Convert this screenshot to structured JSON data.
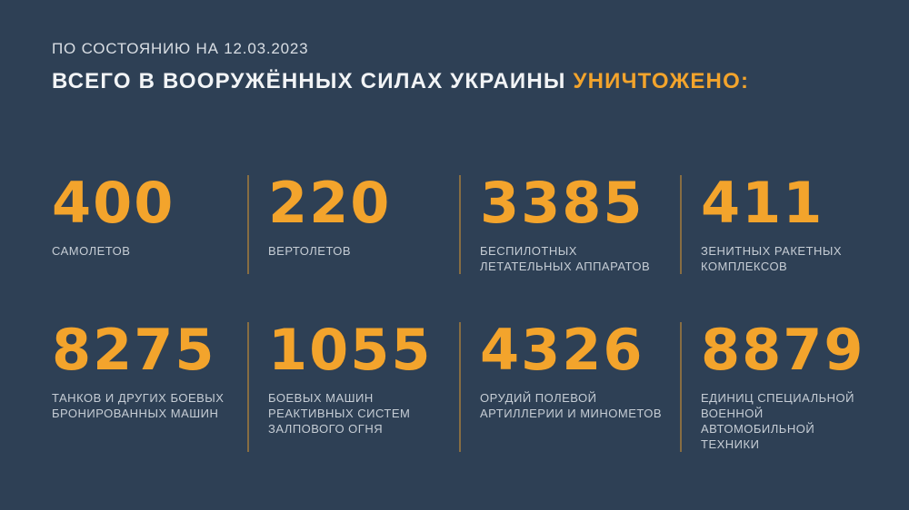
{
  "page": {
    "background_color": "#2e4055",
    "accent_color": "#f3a42c",
    "label_color": "#c6cdd5"
  },
  "header": {
    "date_line": "ПО СОСТОЯНИЮ НА 12.03.2023",
    "title_main": "ВСЕГО В ВООРУЖЁННЫХ СИЛАХ УКРАИНЫ",
    "title_highlight": "УНИЧТОЖЕНО:"
  },
  "stats": [
    {
      "value": "400",
      "label": "САМОЛЕТОВ"
    },
    {
      "value": "220",
      "label": "ВЕРТОЛЕТОВ"
    },
    {
      "value": "3385",
      "label": "БЕСПИЛОТНЫХ\nЛЕТАТЕЛЬНЫХ АППАРАТОВ"
    },
    {
      "value": "411",
      "label": "ЗЕНИТНЫХ РАКЕТНЫХ\nКОМПЛЕКСОВ"
    },
    {
      "value": "8275",
      "label": "ТАНКОВ И ДРУГИХ БОЕВЫХ\nБРОНИРОВАННЫХ МАШИН"
    },
    {
      "value": "1055",
      "label": "БОЕВЫХ МАШИН\nРЕАКТИВНЫХ СИСТЕМ\nЗАЛПОВОГО ОГНЯ"
    },
    {
      "value": "4326",
      "label": "ОРУДИЙ ПОЛЕВОЙ\nАРТИЛЛЕРИИ И МИНОМЕТОВ"
    },
    {
      "value": "8879",
      "label": "ЕДИНИЦ СПЕЦИАЛЬНОЙ\nВОЕННОЙ АВТОМОБИЛЬНОЙ\nТЕХНИКИ"
    }
  ],
  "chart_data": {
    "type": "table",
    "title": "ВСЕГО В ВООРУЖЁННЫХ СИЛАХ УКРАИНЫ УНИЧТОЖЕНО:",
    "subtitle": "ПО СОСТОЯНИЮ НА 12.03.2023",
    "categories": [
      "САМОЛЕТОВ",
      "ВЕРТОЛЕТОВ",
      "БЕСПИЛОТНЫХ ЛЕТАТЕЛЬНЫХ АППАРАТОВ",
      "ЗЕНИТНЫХ РАКЕТНЫХ КОМПЛЕКСОВ",
      "ТАНКОВ И ДРУГИХ БОЕВЫХ БРОНИРОВАННЫХ МАШИН",
      "БОЕВЫХ МАШИН РЕАКТИВНЫХ СИСТЕМ ЗАЛПОВОГО ОГНЯ",
      "ОРУДИЙ ПОЛЕВОЙ АРТИЛЛЕРИИ И МИНОМЕТОВ",
      "ЕДИНИЦ СПЕЦИАЛЬНОЙ ВОЕННОЙ АВТОМОБИЛЬНОЙ ТЕХНИКИ"
    ],
    "values": [
      400,
      220,
      3385,
      411,
      8275,
      1055,
      4326,
      8879
    ],
    "layout": "2 rows x 4 columns of stat tiles, orange numbers, gray caption labels, muted orange vertical dividers between columns"
  }
}
